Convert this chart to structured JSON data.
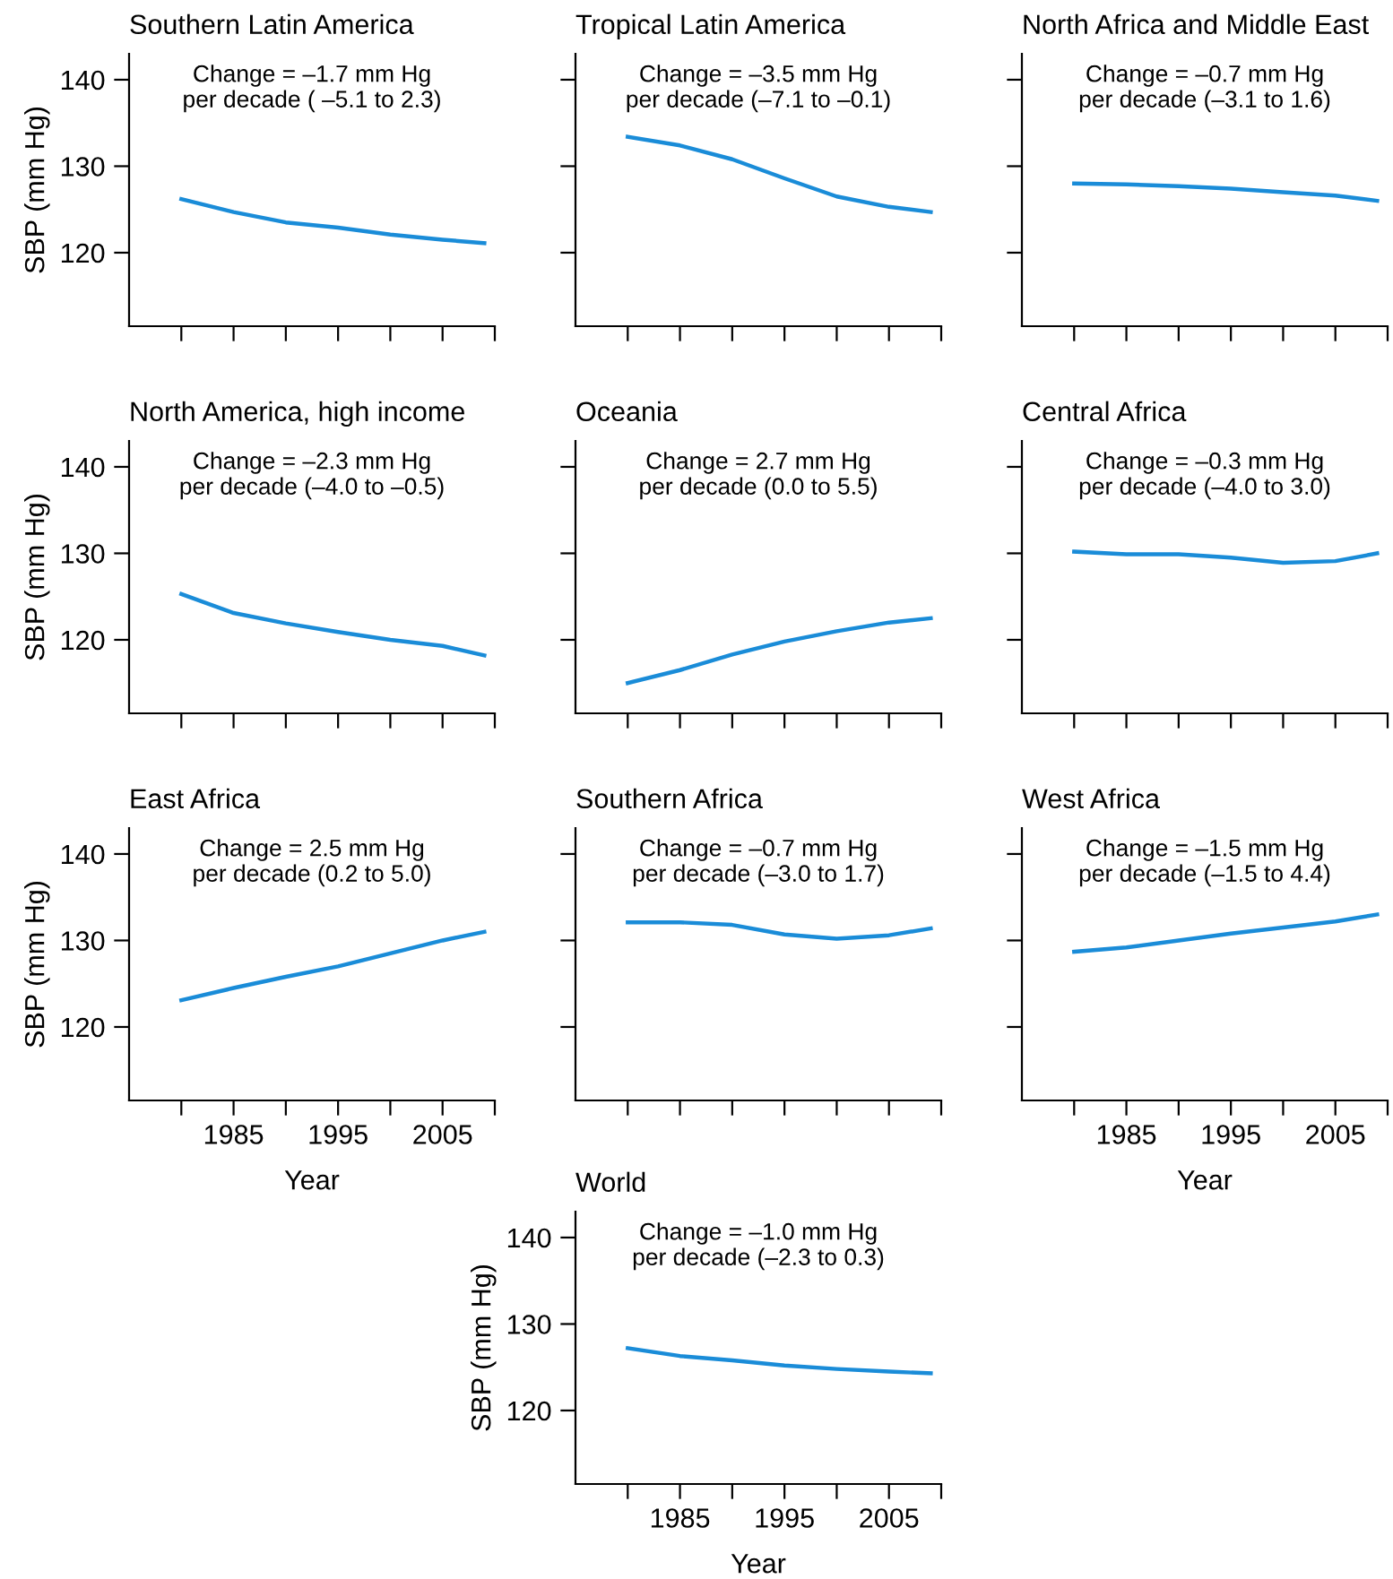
{
  "chart_data": [
    {
      "type": "line",
      "title": "Southern Latin America",
      "ylabel": "SBP (mm Hg)",
      "annotations": [
        "Change = –1.7 mm Hg\nper decade ( –5.1 to 2.3)"
      ],
      "x": [
        1980,
        1985,
        1990,
        1995,
        2000,
        2005,
        2009
      ],
      "series": [
        {
          "color": "#1a8cd8",
          "values": [
            126.2,
            124.7,
            123.5,
            122.9,
            122.1,
            121.5,
            121.1
          ]
        }
      ],
      "xlim": [
        1975,
        2010
      ],
      "ylim": [
        111.5,
        143
      ],
      "xticks": [
        {
          "value": 1980,
          "label": null
        },
        {
          "value": 1985,
          "label": null
        },
        {
          "value": 1990,
          "label": null
        },
        {
          "value": 1995,
          "label": null
        },
        {
          "value": 2000,
          "label": null
        },
        {
          "value": 2005,
          "label": null
        },
        {
          "value": 2010,
          "label": null
        }
      ],
      "yticks": [
        120,
        130,
        140
      ],
      "tick_labels": "y",
      "grid": false,
      "legend": false
    },
    {
      "type": "line",
      "title": "Tropical Latin America",
      "annotations": [
        "Change = –3.5 mm Hg\nper decade (–7.1 to –0.1)"
      ],
      "x": [
        1980,
        1985,
        1990,
        1995,
        2000,
        2005,
        2009
      ],
      "series": [
        {
          "color": "#1a8cd8",
          "values": [
            133.4,
            132.4,
            130.8,
            128.6,
            126.5,
            125.3,
            124.7
          ]
        }
      ],
      "xlim": [
        1975,
        2010
      ],
      "ylim": [
        111.5,
        143
      ],
      "xticks": [
        {
          "value": 1980,
          "label": null
        },
        {
          "value": 1985,
          "label": null
        },
        {
          "value": 1990,
          "label": null
        },
        {
          "value": 1995,
          "label": null
        },
        {
          "value": 2000,
          "label": null
        },
        {
          "value": 2005,
          "label": null
        },
        {
          "value": 2010,
          "label": null
        }
      ],
      "yticks": [
        {
          "value": 120,
          "label": null
        },
        {
          "value": 130,
          "label": null
        },
        {
          "value": 140,
          "label": null
        }
      ],
      "tick_labels": false,
      "grid": false,
      "legend": false
    },
    {
      "type": "line",
      "title": "North Africa and Middle East",
      "annotations": [
        "Change = –0.7 mm Hg\nper decade (–3.1 to 1.6)"
      ],
      "x": [
        1980,
        1985,
        1990,
        1995,
        2000,
        2005,
        2009
      ],
      "series": [
        {
          "color": "#1a8cd8",
          "values": [
            128.0,
            127.9,
            127.7,
            127.4,
            127.0,
            126.6,
            126.0
          ]
        }
      ],
      "xlim": [
        1975,
        2010
      ],
      "ylim": [
        111.5,
        143
      ],
      "xticks": [
        {
          "value": 1980,
          "label": null
        },
        {
          "value": 1985,
          "label": null
        },
        {
          "value": 1990,
          "label": null
        },
        {
          "value": 1995,
          "label": null
        },
        {
          "value": 2000,
          "label": null
        },
        {
          "value": 2005,
          "label": null
        },
        {
          "value": 2010,
          "label": null
        }
      ],
      "yticks": [
        {
          "value": 120,
          "label": null
        },
        {
          "value": 130,
          "label": null
        },
        {
          "value": 140,
          "label": null
        }
      ],
      "tick_labels": false,
      "grid": false,
      "legend": false
    },
    {
      "type": "line",
      "title": "North America, high income",
      "ylabel": "SBP (mm Hg)",
      "annotations": [
        "Change = –2.3 mm Hg\nper decade (–4.0 to –0.5)"
      ],
      "x": [
        1980,
        1985,
        1990,
        1995,
        2000,
        2005,
        2009
      ],
      "series": [
        {
          "color": "#1a8cd8",
          "values": [
            125.3,
            123.1,
            121.9,
            120.9,
            120.0,
            119.3,
            118.2
          ]
        }
      ],
      "xlim": [
        1975,
        2010
      ],
      "ylim": [
        111.5,
        143
      ],
      "xticks": [
        {
          "value": 1980,
          "label": null
        },
        {
          "value": 1985,
          "label": null
        },
        {
          "value": 1990,
          "label": null
        },
        {
          "value": 1995,
          "label": null
        },
        {
          "value": 2000,
          "label": null
        },
        {
          "value": 2005,
          "label": null
        },
        {
          "value": 2010,
          "label": null
        }
      ],
      "yticks": [
        120,
        130,
        140
      ],
      "tick_labels": "y",
      "grid": false,
      "legend": false
    },
    {
      "type": "line",
      "title": "Oceania",
      "annotations": [
        "Change = 2.7 mm Hg\nper decade (0.0 to 5.5)"
      ],
      "x": [
        1980,
        1985,
        1990,
        1995,
        2000,
        2005,
        2009
      ],
      "series": [
        {
          "color": "#1a8cd8",
          "values": [
            115.0,
            116.5,
            118.3,
            119.8,
            121.0,
            122.0,
            122.5
          ]
        }
      ],
      "xlim": [
        1975,
        2010
      ],
      "ylim": [
        111.5,
        143
      ],
      "xticks": [
        {
          "value": 1980,
          "label": null
        },
        {
          "value": 1985,
          "label": null
        },
        {
          "value": 1990,
          "label": null
        },
        {
          "value": 1995,
          "label": null
        },
        {
          "value": 2000,
          "label": null
        },
        {
          "value": 2005,
          "label": null
        },
        {
          "value": 2010,
          "label": null
        }
      ],
      "yticks": [
        {
          "value": 120,
          "label": null
        },
        {
          "value": 130,
          "label": null
        },
        {
          "value": 140,
          "label": null
        }
      ],
      "tick_labels": false,
      "grid": false,
      "legend": false
    },
    {
      "type": "line",
      "title": "Central Africa",
      "annotations": [
        "Change = –0.3 mm Hg\nper decade (–4.0 to 3.0)"
      ],
      "x": [
        1980,
        1985,
        1990,
        1995,
        2000,
        2005,
        2009
      ],
      "series": [
        {
          "color": "#1a8cd8",
          "values": [
            130.2,
            129.9,
            129.9,
            129.5,
            128.9,
            129.1,
            130.0
          ]
        }
      ],
      "xlim": [
        1975,
        2010
      ],
      "ylim": [
        111.5,
        143
      ],
      "xticks": [
        {
          "value": 1980,
          "label": null
        },
        {
          "value": 1985,
          "label": null
        },
        {
          "value": 1990,
          "label": null
        },
        {
          "value": 1995,
          "label": null
        },
        {
          "value": 2000,
          "label": null
        },
        {
          "value": 2005,
          "label": null
        },
        {
          "value": 2010,
          "label": null
        }
      ],
      "yticks": [
        {
          "value": 120,
          "label": null
        },
        {
          "value": 130,
          "label": null
        },
        {
          "value": 140,
          "label": null
        }
      ],
      "tick_labels": false,
      "grid": false,
      "legend": false
    },
    {
      "type": "line",
      "title": "East Africa",
      "xlabel": "Year",
      "ylabel": "SBP (mm Hg)",
      "annotations": [
        "Change = 2.5 mm Hg\nper decade (0.2 to 5.0)"
      ],
      "x": [
        1980,
        1985,
        1990,
        1995,
        2000,
        2005,
        2009
      ],
      "series": [
        {
          "color": "#1a8cd8",
          "values": [
            123.1,
            124.5,
            125.8,
            127.0,
            128.5,
            130.0,
            131.0
          ]
        }
      ],
      "xlim": [
        1975,
        2010
      ],
      "ylim": [
        111.5,
        143
      ],
      "xticks": [
        {
          "value": 1980,
          "label": null
        },
        1985,
        {
          "value": 1990,
          "label": null
        },
        1995,
        {
          "value": 2000,
          "label": null
        },
        2005,
        {
          "value": 2010,
          "label": null
        }
      ],
      "yticks": [
        120,
        130,
        140
      ],
      "grid": false,
      "legend": false
    },
    {
      "type": "line",
      "title": "Southern Africa",
      "annotations": [
        "Change = –0.7 mm Hg\nper decade (–3.0 to 1.7)"
      ],
      "x": [
        1980,
        1985,
        1990,
        1995,
        2000,
        2005,
        2009
      ],
      "series": [
        {
          "color": "#1a8cd8",
          "values": [
            132.1,
            132.1,
            131.8,
            130.7,
            130.2,
            130.6,
            131.4
          ]
        }
      ],
      "xlim": [
        1975,
        2010
      ],
      "ylim": [
        111.5,
        143
      ],
      "xticks": [
        {
          "value": 1980,
          "label": null
        },
        {
          "value": 1985,
          "label": null
        },
        {
          "value": 1990,
          "label": null
        },
        {
          "value": 1995,
          "label": null
        },
        {
          "value": 2000,
          "label": null
        },
        {
          "value": 2005,
          "label": null
        },
        {
          "value": 2010,
          "label": null
        }
      ],
      "yticks": [
        {
          "value": 120,
          "label": null
        },
        {
          "value": 130,
          "label": null
        },
        {
          "value": 140,
          "label": null
        }
      ],
      "tick_labels": false,
      "grid": false,
      "legend": false
    },
    {
      "type": "line",
      "title": "West Africa",
      "xlabel": "Year",
      "annotations": [
        "Change = –1.5 mm Hg\nper decade (–1.5 to 4.4)"
      ],
      "x": [
        1980,
        1985,
        1990,
        1995,
        2000,
        2005,
        2009
      ],
      "series": [
        {
          "color": "#1a8cd8",
          "values": [
            128.7,
            129.2,
            130.0,
            130.8,
            131.5,
            132.2,
            133.0
          ]
        }
      ],
      "xlim": [
        1975,
        2010
      ],
      "ylim": [
        111.5,
        143
      ],
      "xticks": [
        {
          "value": 1980,
          "label": null
        },
        1985,
        {
          "value": 1990,
          "label": null
        },
        1995,
        {
          "value": 2000,
          "label": null
        },
        2005,
        {
          "value": 2010,
          "label": null
        }
      ],
      "yticks": [
        {
          "value": 120,
          "label": null
        },
        {
          "value": 130,
          "label": null
        },
        {
          "value": 140,
          "label": null
        }
      ],
      "tick_labels": "x",
      "grid": false,
      "legend": false
    },
    {
      "type": "line",
      "title": "World",
      "xlabel": "Year",
      "ylabel": "SBP (mm Hg)",
      "annotations": [
        "Change = –1.0 mm Hg\nper decade (–2.3 to 0.3)"
      ],
      "x": [
        1980,
        1985,
        1990,
        1995,
        2000,
        2005,
        2009
      ],
      "series": [
        {
          "color": "#1a8cd8",
          "values": [
            127.2,
            126.3,
            125.8,
            125.2,
            124.8,
            124.5,
            124.3
          ]
        }
      ],
      "xlim": [
        1975,
        2010
      ],
      "ylim": [
        111.5,
        143
      ],
      "xticks": [
        {
          "value": 1980,
          "label": null
        },
        1985,
        {
          "value": 1990,
          "label": null
        },
        1995,
        {
          "value": 2000,
          "label": null
        },
        2005,
        {
          "value": 2010,
          "label": null
        }
      ],
      "yticks": [
        120,
        130,
        140
      ],
      "grid": false,
      "legend": false
    }
  ]
}
